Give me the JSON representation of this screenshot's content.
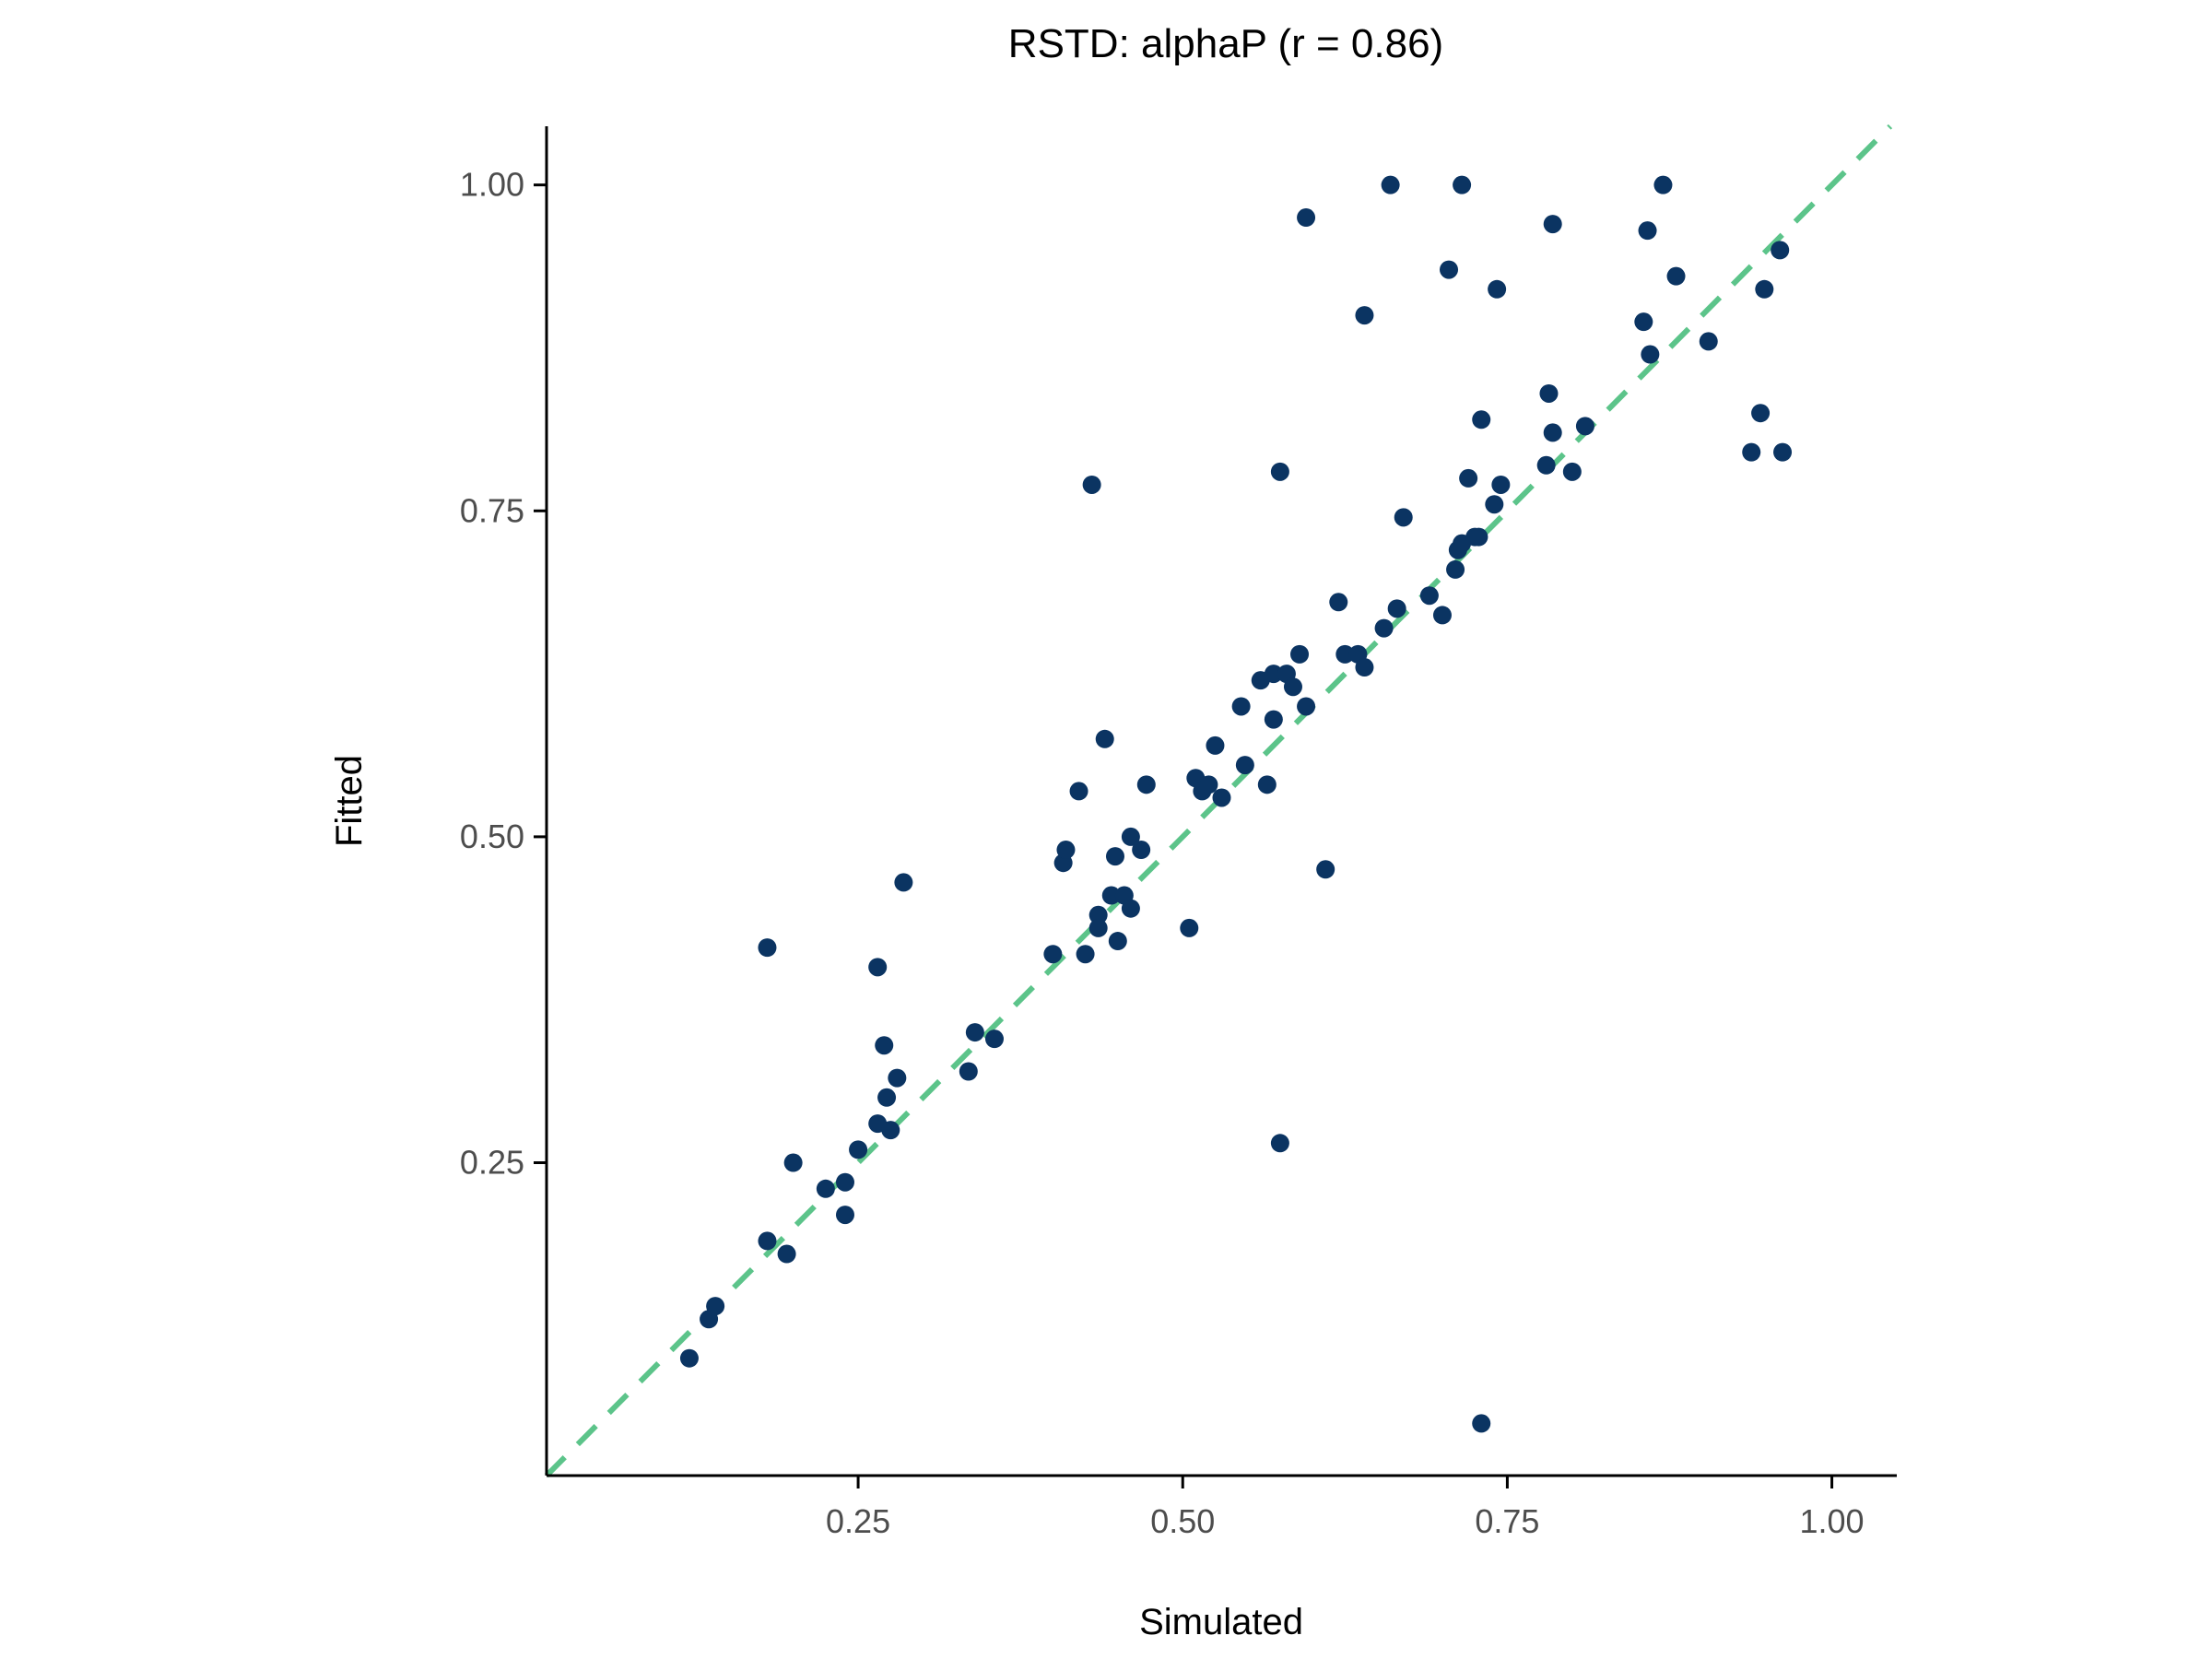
{
  "chart_data": {
    "type": "scatter",
    "title": "RSTD: alphaP (r = 0.86)",
    "xlabel": "Simulated",
    "ylabel": "Fitted",
    "xlim": [
      0.01,
      1.05
    ],
    "ylim": [
      0.01,
      1.045
    ],
    "x_ticks": [
      0.25,
      0.5,
      0.75,
      1.0
    ],
    "x_tick_labels": [
      "0.25",
      "0.50",
      "0.75",
      "1.00"
    ],
    "y_ticks": [
      0.25,
      0.5,
      0.75,
      1.0
    ],
    "y_tick_labels": [
      "0.25",
      "0.50",
      "0.75",
      "1.00"
    ],
    "grid": false,
    "reference_line": {
      "type": "identity",
      "slope": 1,
      "intercept": 0,
      "style": "dashed",
      "color": "#5cc48a"
    },
    "point_color": "#0b3462",
    "points": [
      [
        0.12,
        0.1
      ],
      [
        0.135,
        0.13
      ],
      [
        0.14,
        0.14
      ],
      [
        0.18,
        0.19
      ],
      [
        0.195,
        0.18
      ],
      [
        0.2,
        0.25
      ],
      [
        0.18,
        0.415
      ],
      [
        0.225,
        0.23
      ],
      [
        0.24,
        0.235
      ],
      [
        0.24,
        0.21
      ],
      [
        0.25,
        0.26
      ],
      [
        0.265,
        0.28
      ],
      [
        0.265,
        0.4
      ],
      [
        0.27,
        0.34
      ],
      [
        0.272,
        0.3
      ],
      [
        0.275,
        0.275
      ],
      [
        0.28,
        0.315
      ],
      [
        0.285,
        0.465
      ],
      [
        0.335,
        0.32
      ],
      [
        0.34,
        0.35
      ],
      [
        0.355,
        0.345
      ],
      [
        0.4,
        0.41
      ],
      [
        0.408,
        0.48
      ],
      [
        0.41,
        0.49
      ],
      [
        0.42,
        0.535
      ],
      [
        0.425,
        0.41
      ],
      [
        0.43,
        0.77
      ],
      [
        0.435,
        0.44
      ],
      [
        0.435,
        0.43
      ],
      [
        0.44,
        0.575
      ],
      [
        0.445,
        0.455
      ],
      [
        0.448,
        0.485
      ],
      [
        0.45,
        0.42
      ],
      [
        0.455,
        0.455
      ],
      [
        0.46,
        0.445
      ],
      [
        0.46,
        0.5
      ],
      [
        0.468,
        0.49
      ],
      [
        0.472,
        0.54
      ],
      [
        0.505,
        0.43
      ],
      [
        0.51,
        0.545
      ],
      [
        0.515,
        0.535
      ],
      [
        0.52,
        0.54
      ],
      [
        0.525,
        0.57
      ],
      [
        0.53,
        0.53
      ],
      [
        0.545,
        0.6
      ],
      [
        0.548,
        0.555
      ],
      [
        0.56,
        0.62
      ],
      [
        0.565,
        0.54
      ],
      [
        0.57,
        0.625
      ],
      [
        0.57,
        0.59
      ],
      [
        0.575,
        0.78
      ],
      [
        0.575,
        0.265
      ],
      [
        0.58,
        0.625
      ],
      [
        0.585,
        0.615
      ],
      [
        0.59,
        0.64
      ],
      [
        0.595,
        0.6
      ],
      [
        0.595,
        0.975
      ],
      [
        0.61,
        0.475
      ],
      [
        0.62,
        0.68
      ],
      [
        0.625,
        0.64
      ],
      [
        0.635,
        0.64
      ],
      [
        0.64,
        0.63
      ],
      [
        0.64,
        0.9
      ],
      [
        0.655,
        0.66
      ],
      [
        0.66,
        1.0
      ],
      [
        0.665,
        0.675
      ],
      [
        0.67,
        0.745
      ],
      [
        0.69,
        0.685
      ],
      [
        0.7,
        0.67
      ],
      [
        0.705,
        0.935
      ],
      [
        0.71,
        0.705
      ],
      [
        0.712,
        0.72
      ],
      [
        0.715,
        0.725
      ],
      [
        0.715,
        1.0
      ],
      [
        0.72,
        0.775
      ],
      [
        0.725,
        0.73
      ],
      [
        0.728,
        0.73
      ],
      [
        0.73,
        0.82
      ],
      [
        0.73,
        0.05
      ],
      [
        0.74,
        0.755
      ],
      [
        0.742,
        0.92
      ],
      [
        0.745,
        0.77
      ],
      [
        0.78,
        0.785
      ],
      [
        0.782,
        0.84
      ],
      [
        0.785,
        0.97
      ],
      [
        0.785,
        0.81
      ],
      [
        0.8,
        0.78
      ],
      [
        0.81,
        0.815
      ],
      [
        0.855,
        0.895
      ],
      [
        0.858,
        0.965
      ],
      [
        0.86,
        0.87
      ],
      [
        0.87,
        1.0
      ],
      [
        0.88,
        0.93
      ],
      [
        0.905,
        0.88
      ],
      [
        0.938,
        0.795
      ],
      [
        0.945,
        0.825
      ],
      [
        0.948,
        0.92
      ],
      [
        0.96,
        0.95
      ],
      [
        0.962,
        0.795
      ]
    ]
  }
}
